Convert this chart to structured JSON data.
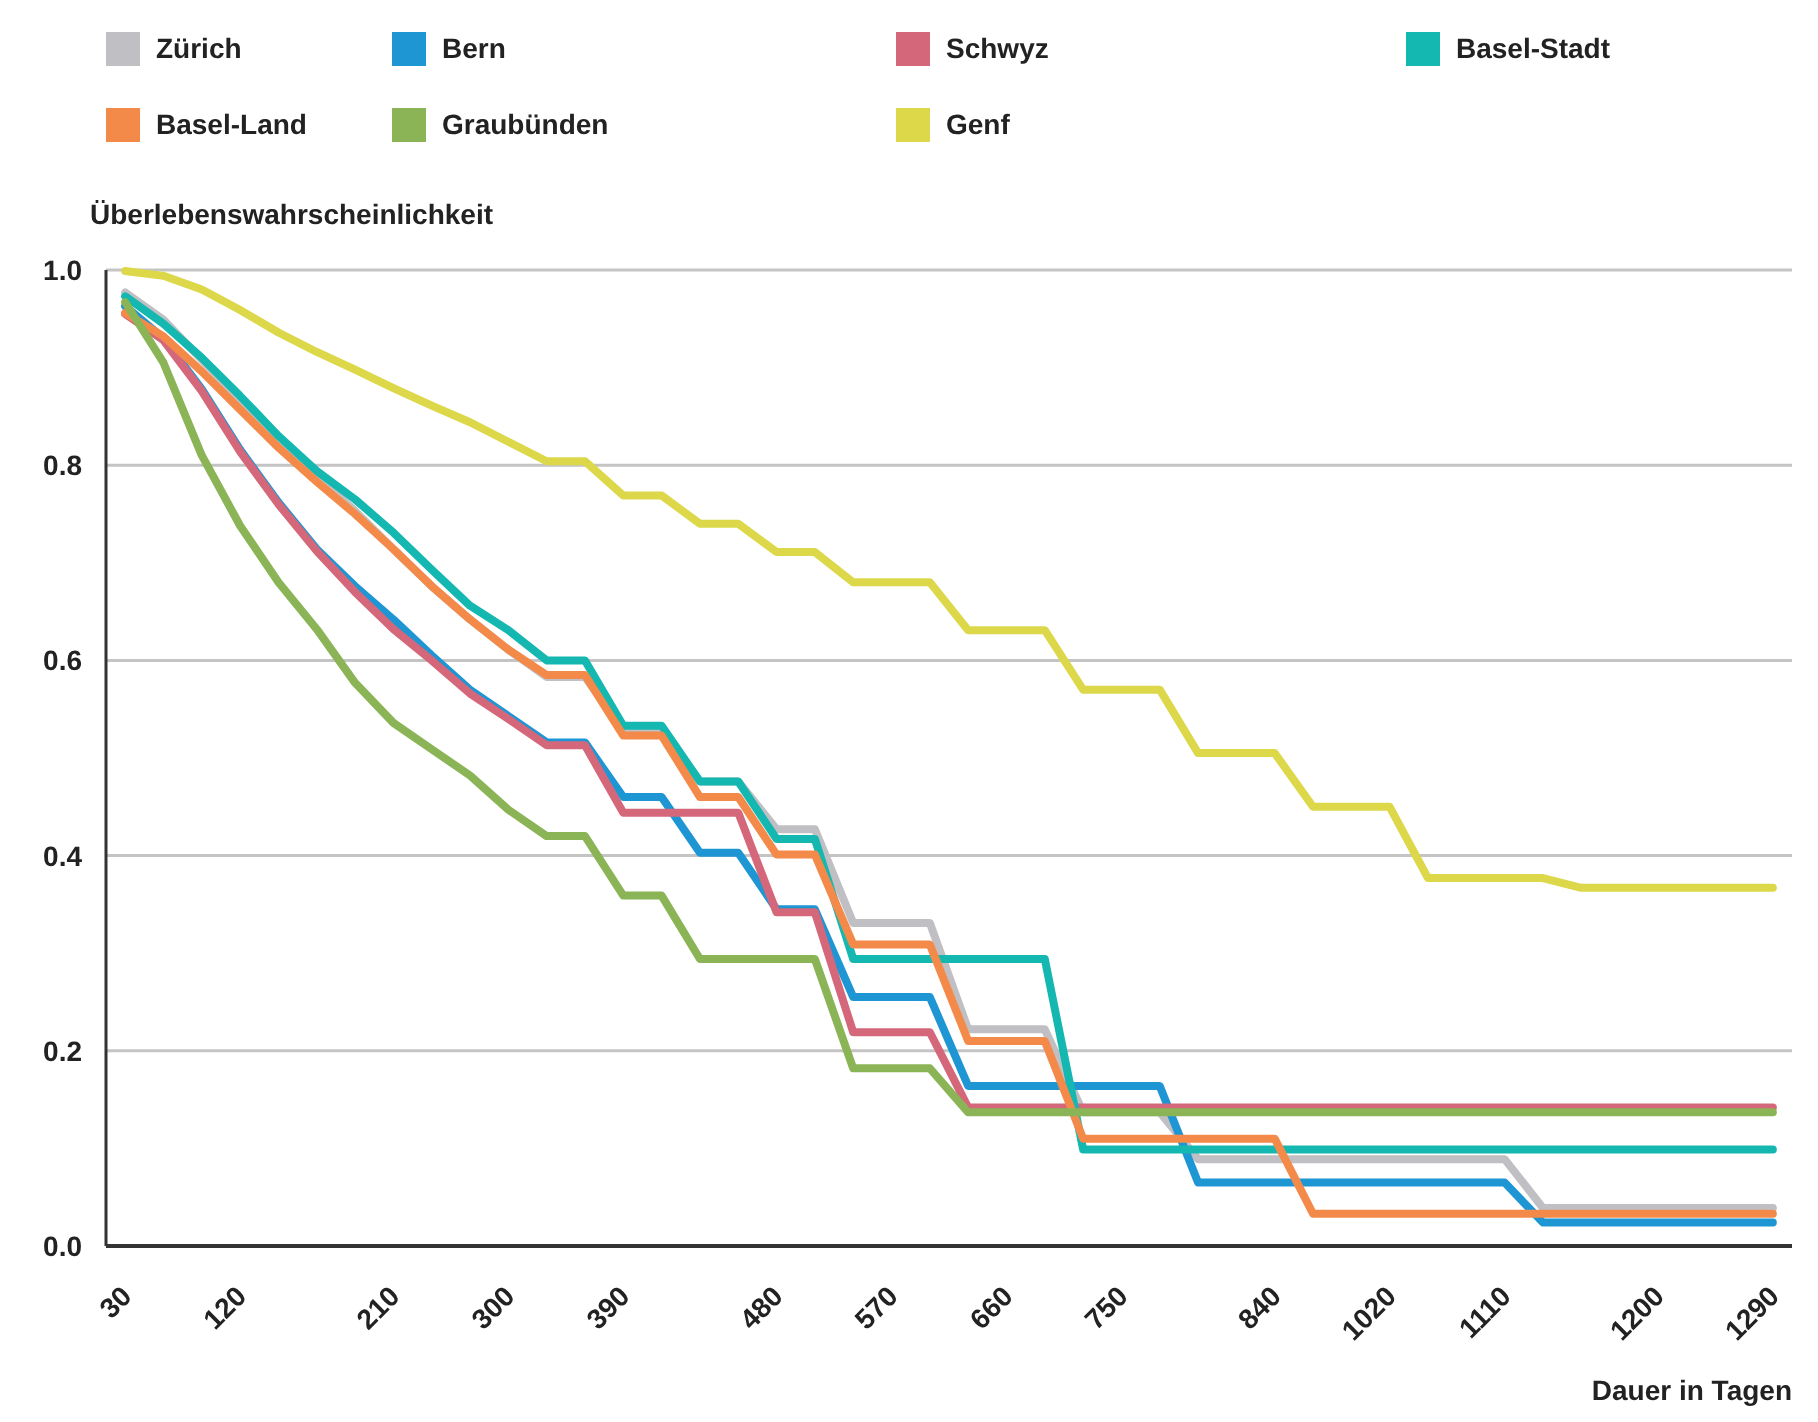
{
  "chart_data": {
    "type": "line",
    "xlabel": "Dauer in Tagen",
    "ylabel": "Überlebenswahrscheinlichkeit",
    "categories": [
      "30",
      null,
      null,
      "120",
      null,
      null,
      null,
      "210",
      null,
      null,
      "300",
      null,
      null,
      "390",
      null,
      null,
      null,
      "480",
      null,
      null,
      "570",
      null,
      null,
      "660",
      null,
      null,
      "750",
      null,
      null,
      null,
      "840",
      null,
      null,
      "1020",
      null,
      null,
      "1110",
      null,
      null,
      null,
      "1200",
      null,
      null,
      "1290"
    ],
    "ylim": [
      0,
      1
    ],
    "yticks": [
      {
        "value": 0,
        "label": "0.0"
      },
      0.2,
      0.4,
      0.6,
      0.8,
      {
        "value": 1,
        "label": "1.0"
      }
    ],
    "grid": "y",
    "legend": "top",
    "line_style": "solid",
    "series": [
      {
        "name": "Zürich",
        "color": "#c0c0c4",
        "values": [
          0.977,
          0.949,
          0.908,
          0.867,
          0.826,
          0.789,
          0.753,
          0.714,
          0.676,
          0.642,
          0.611,
          0.583,
          0.583,
          0.529,
          0.529,
          0.476,
          0.476,
          0.427,
          0.427,
          0.331,
          0.331,
          0.331,
          0.222,
          0.222,
          0.222,
          0.137,
          0.137,
          0.137,
          0.089,
          0.089,
          0.089,
          0.089,
          0.089,
          0.089,
          0.089,
          0.089,
          0.089,
          0.039,
          0.039,
          0.039,
          0.039,
          0.039,
          0.039,
          0.039
        ]
      },
      {
        "name": "Bern",
        "color": "#1f96d4",
        "values": [
          0.963,
          0.93,
          0.878,
          0.816,
          0.762,
          0.714,
          0.676,
          0.642,
          0.605,
          0.57,
          0.543,
          0.516,
          0.516,
          0.46,
          0.46,
          0.403,
          0.403,
          0.345,
          0.345,
          0.255,
          0.255,
          0.255,
          0.164,
          0.164,
          0.164,
          0.164,
          0.164,
          0.164,
          0.065,
          0.065,
          0.065,
          0.065,
          0.065,
          0.065,
          0.065,
          0.065,
          0.065,
          0.024,
          0.024,
          0.024,
          0.024,
          0.024,
          0.024,
          0.024
        ]
      },
      {
        "name": "Schwyz",
        "color": "#d4687a",
        "values": [
          0.955,
          0.928,
          0.876,
          0.814,
          0.76,
          0.712,
          0.67,
          0.632,
          0.6,
          0.566,
          0.54,
          0.513,
          0.513,
          0.444,
          0.444,
          0.444,
          0.444,
          0.342,
          0.342,
          0.219,
          0.219,
          0.219,
          0.142,
          0.142,
          0.142,
          0.142,
          0.142,
          0.142,
          0.142,
          0.142,
          0.142,
          0.142,
          0.142,
          0.142,
          0.142,
          0.142,
          0.142,
          0.142,
          0.142,
          0.142,
          0.142,
          0.142,
          0.142,
          0.142
        ]
      },
      {
        "name": "Basel-Stadt",
        "color": "#14b8b0",
        "values": [
          0.973,
          0.945,
          0.91,
          0.871,
          0.83,
          0.794,
          0.765,
          0.731,
          0.693,
          0.656,
          0.631,
          0.6,
          0.6,
          0.533,
          0.533,
          0.476,
          0.476,
          0.417,
          0.417,
          0.294,
          0.294,
          0.294,
          0.294,
          0.294,
          0.294,
          0.099,
          0.099,
          0.099,
          0.099,
          0.099,
          0.099,
          0.099,
          0.099,
          0.099,
          0.099,
          0.099,
          0.099,
          0.099,
          0.099,
          0.099,
          0.099,
          0.099,
          0.099,
          0.099
        ]
      },
      {
        "name": "Basel-Land",
        "color": "#f48a4a",
        "values": [
          0.956,
          0.932,
          0.896,
          0.857,
          0.818,
          0.783,
          0.75,
          0.714,
          0.676,
          0.642,
          0.611,
          0.585,
          0.585,
          0.523,
          0.523,
          0.46,
          0.46,
          0.401,
          0.401,
          0.309,
          0.309,
          0.309,
          0.21,
          0.21,
          0.21,
          0.11,
          0.11,
          0.11,
          0.11,
          0.11,
          0.11,
          0.033,
          0.033,
          0.033,
          0.033,
          0.033,
          0.033,
          0.033,
          0.033,
          0.033,
          0.033,
          0.033,
          0.033,
          0.033
        ]
      },
      {
        "name": "Graubünden",
        "color": "#8ab455",
        "values": [
          0.967,
          0.905,
          0.81,
          0.738,
          0.68,
          0.632,
          0.577,
          0.536,
          0.509,
          0.482,
          0.447,
          0.42,
          0.42,
          0.359,
          0.359,
          0.294,
          0.294,
          0.294,
          0.294,
          0.182,
          0.182,
          0.182,
          0.137,
          0.137,
          0.137,
          0.137,
          0.137,
          0.137,
          0.137,
          0.137,
          0.137,
          0.137,
          0.137,
          0.137,
          0.137,
          0.137,
          0.137,
          0.137,
          0.137,
          0.137,
          0.137,
          0.137,
          0.137,
          0.137
        ]
      },
      {
        "name": "Genf",
        "color": "#dcd84a",
        "values": [
          0.999,
          0.994,
          0.98,
          0.959,
          0.936,
          0.916,
          0.898,
          0.879,
          0.861,
          0.844,
          0.824,
          0.804,
          0.804,
          0.769,
          0.769,
          0.74,
          0.74,
          0.711,
          0.711,
          0.68,
          0.68,
          0.68,
          0.631,
          0.631,
          0.631,
          0.57,
          0.57,
          0.57,
          0.505,
          0.505,
          0.505,
          0.45,
          0.45,
          0.45,
          0.377,
          0.377,
          0.377,
          0.377,
          0.367,
          0.367,
          0.367,
          0.367,
          0.367,
          0.367
        ]
      }
    ]
  }
}
